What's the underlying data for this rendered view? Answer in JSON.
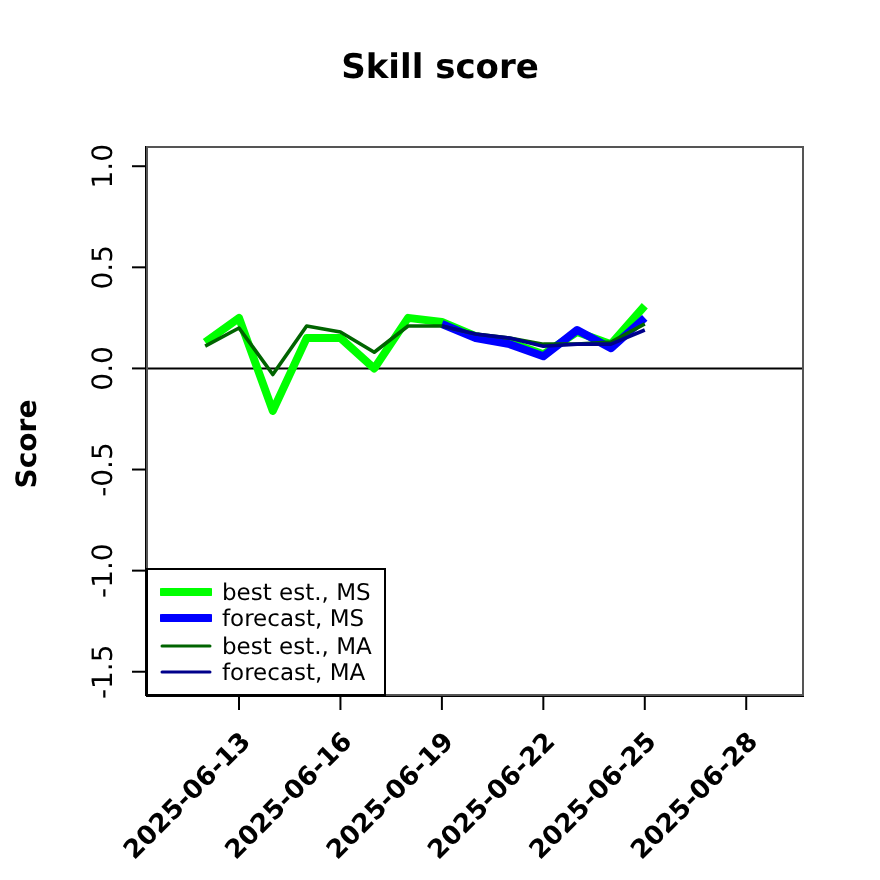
{
  "chart_data": {
    "type": "line",
    "title": "Skill score",
    "ylabel": "Score",
    "x": [
      "2025-06-12",
      "2025-06-13",
      "2025-06-14",
      "2025-06-15",
      "2025-06-16",
      "2025-06-17",
      "2025-06-18",
      "2025-06-19",
      "2025-06-20",
      "2025-06-21",
      "2025-06-22",
      "2025-06-23",
      "2025-06-24",
      "2025-06-25"
    ],
    "series": [
      {
        "name": "best est., MS",
        "color": "#00ff00",
        "values": [
          0.13,
          0.25,
          -0.21,
          0.15,
          0.15,
          0.0,
          0.25,
          0.23,
          0.16,
          0.13,
          0.07,
          0.18,
          0.12,
          0.31
        ]
      },
      {
        "name": "forecast, MS",
        "color": "#0000ff",
        "x": [
          "2025-06-19",
          "2025-06-20",
          "2025-06-21",
          "2025-06-22",
          "2025-06-23",
          "2025-06-24",
          "2025-06-25"
        ],
        "values": [
          0.22,
          0.15,
          0.12,
          0.06,
          0.19,
          0.1,
          0.25
        ]
      },
      {
        "name": "best est., MA",
        "color": "#006400",
        "values": [
          0.11,
          0.2,
          -0.03,
          0.21,
          0.18,
          0.08,
          0.21,
          0.21,
          0.17,
          0.15,
          0.12,
          0.12,
          0.13,
          0.22
        ]
      },
      {
        "name": "forecast, MA",
        "color": "#00008b",
        "x": [
          "2025-06-19",
          "2025-06-20",
          "2025-06-21",
          "2025-06-22",
          "2025-06-23",
          "2025-06-24",
          "2025-06-25"
        ],
        "values": [
          0.21,
          0.17,
          0.15,
          0.11,
          0.12,
          0.12,
          0.19
        ]
      }
    ],
    "xlim": [
      "2025-06-10T06:00",
      "2025-06-29T17:00"
    ],
    "xticks": [
      {
        "value": "2025-06-13",
        "label": "2025-06-13"
      },
      {
        "value": "2025-06-16",
        "label": "2025-06-16"
      },
      {
        "value": "2025-06-19",
        "label": "2025-06-19"
      },
      {
        "value": "2025-06-22",
        "label": "2025-06-22"
      },
      {
        "value": "2025-06-25",
        "label": "2025-06-25"
      },
      {
        "value": "2025-06-28",
        "label": "2025-06-28"
      }
    ],
    "ylim": [
      -1.62,
      1.1
    ],
    "yticks": [
      {
        "value": -1.5,
        "label": "-1.5"
      },
      {
        "value": -1.0,
        "label": "-1.0"
      },
      {
        "value": -0.5,
        "label": "-0.5"
      },
      {
        "value": 0.0,
        "label": "0.0"
      },
      {
        "value": 0.5,
        "label": "0.5"
      },
      {
        "value": 1.0,
        "label": "1.0"
      }
    ],
    "ref_lines": [
      {
        "axis": "y",
        "value": 0,
        "color": "#000000"
      }
    ],
    "legend": "bottom left",
    "grid": false,
    "marker": "none",
    "line_style": "solid"
  }
}
